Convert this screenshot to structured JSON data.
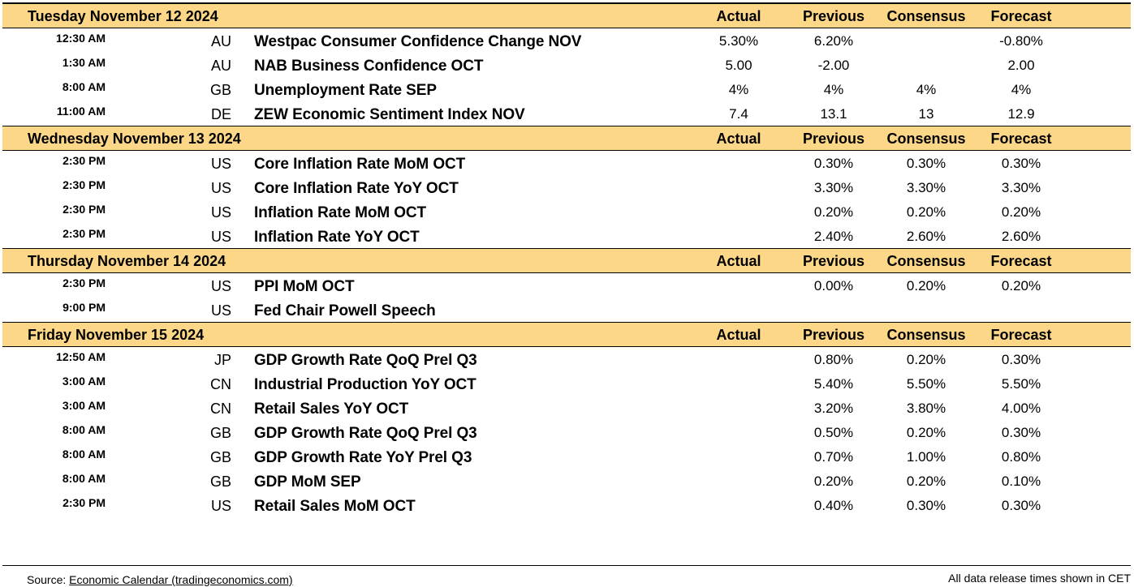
{
  "columns": {
    "actual": "Actual",
    "previous": "Previous",
    "consensus": "Consensus",
    "forecast": "Forecast"
  },
  "days": [
    {
      "date": "Tuesday November 12 2024",
      "events": [
        {
          "time": "12:30 AM",
          "country": "AU",
          "event": "Westpac Consumer Confidence Change NOV",
          "actual": "5.30%",
          "previous": "6.20%",
          "consensus": "",
          "forecast": "-0.80%"
        },
        {
          "time": "1:30 AM",
          "country": "AU",
          "event": "NAB Business Confidence OCT",
          "actual": "5.00",
          "previous": "-2.00",
          "consensus": "",
          "forecast": "2.00"
        },
        {
          "time": "8:00 AM",
          "country": "GB",
          "event": "Unemployment Rate SEP",
          "actual": "4%",
          "previous": "4%",
          "consensus": "4%",
          "forecast": "4%"
        },
        {
          "time": "11:00 AM",
          "country": "DE",
          "event": "ZEW Economic Sentiment Index NOV",
          "actual": "7.4",
          "previous": "13.1",
          "consensus": "13",
          "forecast": "12.9"
        }
      ]
    },
    {
      "date": "Wednesday November 13 2024",
      "events": [
        {
          "time": "2:30 PM",
          "country": "US",
          "event": "Core Inflation Rate MoM OCT",
          "actual": "",
          "previous": "0.30%",
          "consensus": "0.30%",
          "forecast": "0.30%"
        },
        {
          "time": "2:30 PM",
          "country": "US",
          "event": "Core Inflation Rate YoY OCT",
          "actual": "",
          "previous": "3.30%",
          "consensus": "3.30%",
          "forecast": "3.30%"
        },
        {
          "time": "2:30 PM",
          "country": "US",
          "event": "Inflation Rate MoM OCT",
          "actual": "",
          "previous": "0.20%",
          "consensus": "0.20%",
          "forecast": "0.20%"
        },
        {
          "time": "2:30 PM",
          "country": "US",
          "event": "Inflation Rate YoY OCT",
          "actual": "",
          "previous": "2.40%",
          "consensus": "2.60%",
          "forecast": "2.60%"
        }
      ]
    },
    {
      "date": "Thursday November 14 2024",
      "events": [
        {
          "time": "2:30 PM",
          "country": "US",
          "event": "PPI MoM OCT",
          "actual": "",
          "previous": "0.00%",
          "consensus": "0.20%",
          "forecast": "0.20%"
        },
        {
          "time": "9:00 PM",
          "country": "US",
          "event": "Fed Chair Powell Speech",
          "actual": "",
          "previous": "",
          "consensus": "",
          "forecast": ""
        }
      ]
    },
    {
      "date": "Friday November 15 2024",
      "events": [
        {
          "time": "12:50 AM",
          "country": "JP",
          "event": "GDP Growth Rate QoQ Prel Q3",
          "actual": "",
          "previous": "0.80%",
          "consensus": "0.20%",
          "forecast": "0.30%"
        },
        {
          "time": "3:00 AM",
          "country": "CN",
          "event": "Industrial Production YoY OCT",
          "actual": "",
          "previous": "5.40%",
          "consensus": "5.50%",
          "forecast": "5.50%"
        },
        {
          "time": "3:00 AM",
          "country": "CN",
          "event": "Retail Sales YoY OCT",
          "actual": "",
          "previous": "3.20%",
          "consensus": "3.80%",
          "forecast": "4.00%"
        },
        {
          "time": "8:00 AM",
          "country": "GB",
          "event": "GDP Growth Rate QoQ Prel Q3",
          "actual": "",
          "previous": "0.50%",
          "consensus": "0.20%",
          "forecast": "0.30%"
        },
        {
          "time": "8:00 AM",
          "country": "GB",
          "event": "GDP Growth Rate YoY Prel Q3",
          "actual": "",
          "previous": "0.70%",
          "consensus": "1.00%",
          "forecast": "0.80%"
        },
        {
          "time": "8:00 AM",
          "country": "GB",
          "event": "GDP MoM SEP",
          "actual": "",
          "previous": "0.20%",
          "consensus": "0.20%",
          "forecast": "0.10%"
        },
        {
          "time": "2:30 PM",
          "country": "US",
          "event": "Retail Sales MoM OCT",
          "actual": "",
          "previous": "0.40%",
          "consensus": "0.30%",
          "forecast": "0.30%"
        }
      ]
    }
  ],
  "footer": {
    "source_prefix": "Source: ",
    "source_link": "Economic Calendar (tradingeconomics.com)",
    "note": "All data release times shown in CET"
  },
  "colors": {
    "header_bg": "#fdd788"
  }
}
